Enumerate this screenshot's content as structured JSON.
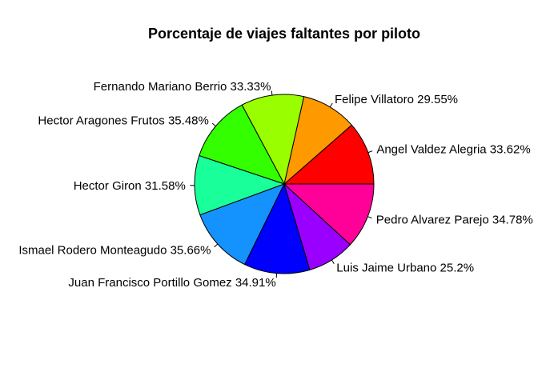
{
  "chart_data": {
    "type": "pie",
    "title": "Porcentaje de viajes faltantes por piloto",
    "slices": [
      {
        "label": "Angel Valdez Alegria 33.62%",
        "value": 33.62,
        "color": "#FF0000"
      },
      {
        "label": "Felipe Villatoro 29.55%",
        "value": 29.55,
        "color": "#FF9900"
      },
      {
        "label": "Fernando Mariano Berrio 33.33%",
        "value": 33.33,
        "color": "#99FF00"
      },
      {
        "label": "Hector Aragones Frutos 35.48%",
        "value": 35.48,
        "color": "#33FF00"
      },
      {
        "label": "Hector Giron 31.58%",
        "value": 31.58,
        "color": "#19FF99"
      },
      {
        "label": "Ismael Rodero Monteagudo 35.66%",
        "value": 35.66,
        "color": "#1493FF"
      },
      {
        "label": "Juan Francisco Portillo Gomez 34.91%",
        "value": 34.91,
        "color": "#0000FF"
      },
      {
        "label": "Luis Jaime Urbano 25.2%",
        "value": 25.2,
        "color": "#9900FF"
      },
      {
        "label": "Pedro Alvarez Parejo 34.78%",
        "value": 34.78,
        "color": "#FF0099"
      }
    ]
  }
}
